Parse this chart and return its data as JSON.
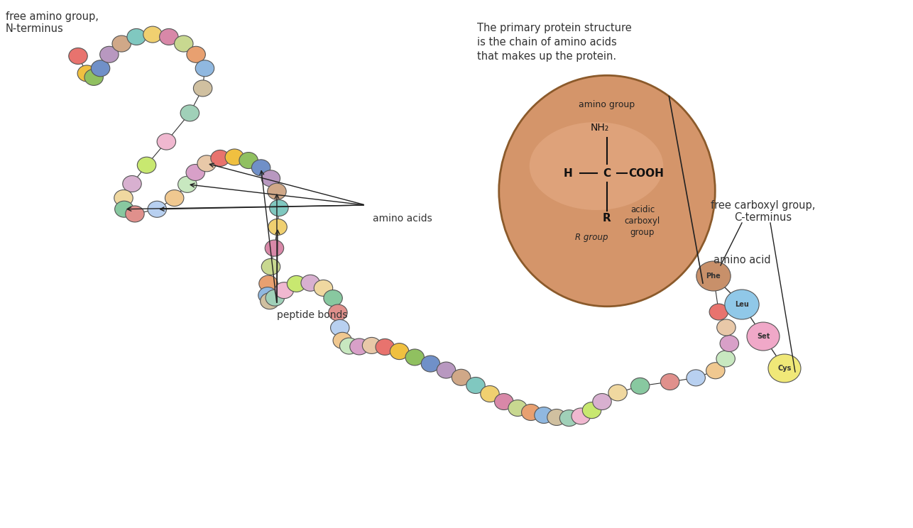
{
  "bg_color": "#ffffff",
  "text_color": "#333333",
  "label_amino_group": "free amino group,\nN-terminus",
  "label_carboxyl_group": "free carboxyl group,\nC-terminus",
  "label_amino_acids": "amino acids",
  "label_peptide_bonds": "peptide bonds",
  "label_primary_structure": "The primary protein structure\nis the chain of amino acids\nthat makes up the protein.",
  "label_amino_acid": "amino acid",
  "bead_colors": [
    "#e8736e",
    "#f0c040",
    "#90c060",
    "#7090c8",
    "#b898c0",
    "#d0a888",
    "#80c8c0",
    "#f0d070",
    "#d888a8",
    "#c8d890",
    "#e8a070",
    "#90b8e0",
    "#d0c0a0",
    "#a0d0b8",
    "#f0b8d0",
    "#c8e870",
    "#d8b0d0",
    "#f0d8a0",
    "#88c8a0",
    "#e0908c",
    "#b8d0f0",
    "#f0c890",
    "#c8e8c0",
    "#d8a0c8",
    "#e8c8a8"
  ],
  "large_circle_color": "#c8906a",
  "phe_color": "#c8906a",
  "leu_color": "#90c8e8",
  "set_color": "#f0a8c8",
  "cys_color": "#f0e878"
}
